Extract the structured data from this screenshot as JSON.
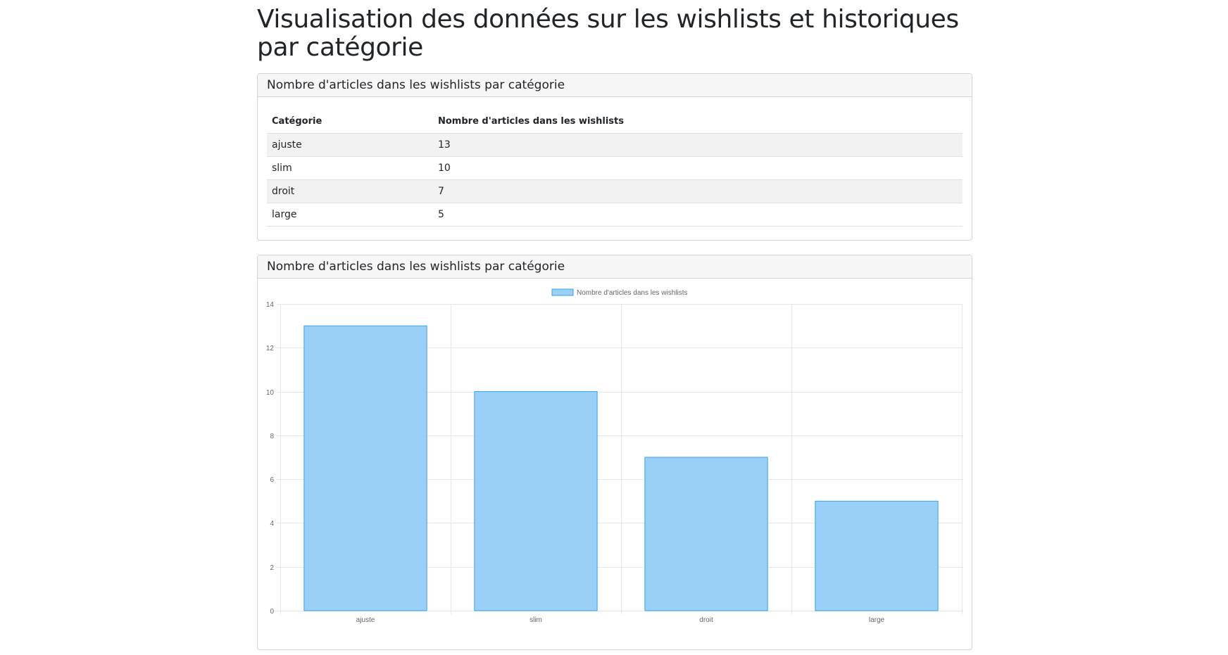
{
  "page": {
    "title": "Visualisation des données sur les wishlists et historiques par catégorie"
  },
  "table_card": {
    "header": "Nombre d'articles dans les wishlists par catégorie",
    "columns": [
      "Catégorie",
      "Nombre d'articles dans les wishlists"
    ],
    "rows": [
      [
        "ajuste",
        "13"
      ],
      [
        "slim",
        "10"
      ],
      [
        "droit",
        "7"
      ],
      [
        "large",
        "5"
      ]
    ]
  },
  "chart_card": {
    "header": "Nombre d'articles dans les wishlists par catégorie"
  },
  "colors": {
    "bar_fill": "#9ad0f5",
    "bar_stroke": "#36a2eb",
    "grid": "#e6e6e6"
  },
  "chart_data": {
    "type": "bar",
    "categories": [
      "ajuste",
      "slim",
      "droit",
      "large"
    ],
    "series": [
      {
        "name": "Nombre d'articles dans les wishlists",
        "values": [
          13,
          10,
          7,
          5
        ]
      }
    ],
    "ylim": [
      0,
      14
    ],
    "yticks": [
      0,
      2,
      4,
      6,
      8,
      10,
      12,
      14
    ],
    "legend": "top",
    "grid": true
  }
}
